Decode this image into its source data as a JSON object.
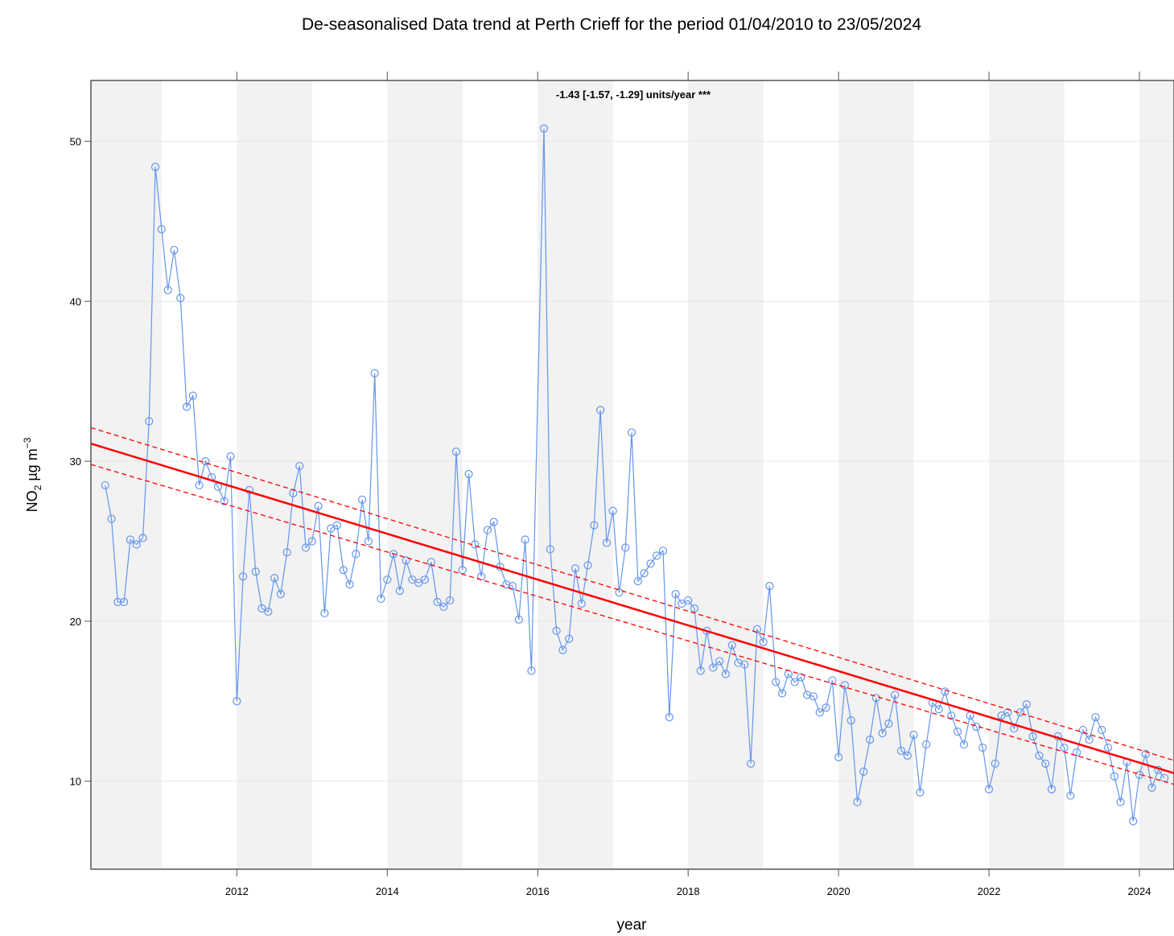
{
  "chart_data": {
    "type": "line",
    "title": "De-seasonalised Data trend at Perth Crieff for the period 01/04/2010 to 23/05/2024",
    "x_label": "year",
    "y_label": {
      "main": "NO",
      "sub": "2",
      "unit": " µg m",
      "sup": "−3"
    },
    "annotation": "-1.43 [-1.57, -1.29] units/year ***",
    "annotation_color": "#008000",
    "xlim": [
      2010.06,
      2024.46
    ],
    "xticks": [
      2012,
      2014,
      2016,
      2018,
      2020,
      2022,
      2024
    ],
    "ylim": [
      4.5,
      53.8
    ],
    "yticks": [
      10,
      20,
      30,
      40,
      50
    ],
    "grid": true,
    "year_shading": true,
    "series": [
      {
        "color": "#6495ed",
        "x": [
          "2010-04",
          "2010-05",
          "2010-06",
          "2010-07",
          "2010-08",
          "2010-09",
          "2010-10",
          "2010-11",
          "2010-12",
          "2011-01",
          "2011-02",
          "2011-03",
          "2011-04",
          "2011-05",
          "2011-06",
          "2011-07",
          "2011-08",
          "2011-09",
          "2011-10",
          "2011-11",
          "2011-12",
          "2012-01",
          "2012-02",
          "2012-03",
          "2012-04",
          "2012-05",
          "2012-06",
          "2012-07",
          "2012-08",
          "2012-09",
          "2012-10",
          "2012-11",
          "2012-12",
          "2013-01",
          "2013-02",
          "2013-03",
          "2013-04",
          "2013-05",
          "2013-06",
          "2013-07",
          "2013-08",
          "2013-09",
          "2013-10",
          "2013-11",
          "2013-12",
          "2014-01",
          "2014-02",
          "2014-03",
          "2014-04",
          "2014-05",
          "2014-06",
          "2014-07",
          "2014-08",
          "2014-09",
          "2014-10",
          "2014-11",
          "2014-12",
          "2015-01",
          "2015-02",
          "2015-03",
          "2015-04",
          "2015-05",
          "2015-06",
          "2015-07",
          "2015-08",
          "2015-09",
          "2015-10",
          "2015-11",
          "2015-12",
          "2016-02",
          "2016-03",
          "2016-04",
          "2016-05",
          "2016-06",
          "2016-07",
          "2016-08",
          "2016-09",
          "2016-10",
          "2016-11",
          "2016-12",
          "2017-01",
          "2017-02",
          "2017-03",
          "2017-04",
          "2017-05",
          "2017-06",
          "2017-07",
          "2017-08",
          "2017-09",
          "2017-10",
          "2017-11",
          "2017-12",
          "2018-01",
          "2018-02",
          "2018-03",
          "2018-04",
          "2018-05",
          "2018-06",
          "2018-07",
          "2018-08",
          "2018-09",
          "2018-10",
          "2018-11",
          "2018-12",
          "2019-01",
          "2019-02",
          "2019-03",
          "2019-04",
          "2019-05",
          "2019-06",
          "2019-07",
          "2019-08",
          "2019-09",
          "2019-10",
          "2019-11",
          "2019-12",
          "2020-01",
          "2020-02",
          "2020-03",
          "2020-04",
          "2020-05",
          "2020-06",
          "2020-07",
          "2020-08",
          "2020-09",
          "2020-10",
          "2020-11",
          "2020-12",
          "2021-01",
          "2021-02",
          "2021-03",
          "2021-04",
          "2021-05",
          "2021-06",
          "2021-07",
          "2021-08",
          "2021-09",
          "2021-10",
          "2021-11",
          "2021-12",
          "2022-01",
          "2022-02",
          "2022-03",
          "2022-04",
          "2022-05",
          "2022-06",
          "2022-07",
          "2022-08",
          "2022-09",
          "2022-10",
          "2022-11",
          "2022-12",
          "2023-01",
          "2023-02",
          "2023-03",
          "2023-04",
          "2023-05",
          "2023-06",
          "2023-07",
          "2023-08",
          "2023-09",
          "2023-10",
          "2023-11",
          "2023-12",
          "2024-01",
          "2024-02",
          "2024-03",
          "2024-04",
          "2024-05"
        ],
        "values": [
          28.5,
          26.4,
          21.2,
          21.2,
          25.1,
          24.8,
          25.2,
          32.5,
          48.4,
          44.5,
          40.7,
          43.2,
          40.2,
          33.4,
          34.1,
          28.5,
          30.0,
          29.0,
          28.4,
          27.5,
          30.3,
          15.0,
          22.8,
          28.2,
          23.1,
          20.8,
          20.6,
          22.7,
          21.7,
          24.3,
          28.0,
          29.7,
          24.6,
          25.0,
          27.2,
          20.5,
          25.8,
          26.0,
          23.2,
          22.3,
          24.2,
          27.6,
          25.0,
          35.5,
          21.4,
          22.6,
          24.2,
          21.9,
          23.8,
          22.6,
          22.4,
          22.6,
          23.7,
          21.2,
          20.9,
          21.3,
          30.6,
          23.2,
          29.2,
          24.8,
          22.8,
          25.7,
          26.2,
          23.4,
          22.3,
          22.2,
          20.1,
          25.1,
          16.9,
          50.8,
          24.5,
          19.4,
          18.2,
          18.9,
          23.3,
          21.1,
          23.5,
          26.0,
          33.2,
          24.9,
          26.9,
          21.8,
          24.6,
          31.8,
          22.5,
          23.0,
          23.6,
          24.1,
          24.4,
          14.0,
          21.7,
          21.1,
          21.3,
          20.8,
          16.9,
          19.4,
          17.1,
          17.5,
          16.7,
          18.5,
          17.4,
          17.3,
          11.1,
          19.5,
          18.7,
          22.2,
          16.2,
          15.5,
          16.7,
          16.2,
          16.5,
          15.4,
          15.3,
          14.3,
          14.6,
          16.3,
          11.5,
          16.0,
          13.8,
          8.7,
          10.6,
          12.6,
          15.2,
          13.0,
          13.6,
          15.4,
          11.9,
          11.6,
          12.9,
          9.3,
          12.3,
          14.9,
          14.5,
          15.6,
          14.1,
          13.1,
          12.3,
          14.1,
          13.4,
          12.1,
          9.5,
          11.1,
          14.1,
          14.3,
          13.3,
          14.3,
          14.8,
          12.8,
          11.6,
          11.1,
          9.5,
          12.8,
          12.1,
          9.1,
          11.8,
          13.2,
          12.6,
          14.0,
          13.2,
          12.1,
          10.3,
          8.7,
          11.2,
          7.5,
          10.4,
          11.7,
          9.6,
          10.7,
          10.2
        ]
      }
    ],
    "trend": {
      "color": "#ff0000",
      "x": [
        2010.06,
        2024.46
      ],
      "values": [
        31.1,
        10.5
      ],
      "upper": [
        32.1,
        11.3
      ],
      "lower": [
        29.8,
        9.8
      ]
    }
  }
}
